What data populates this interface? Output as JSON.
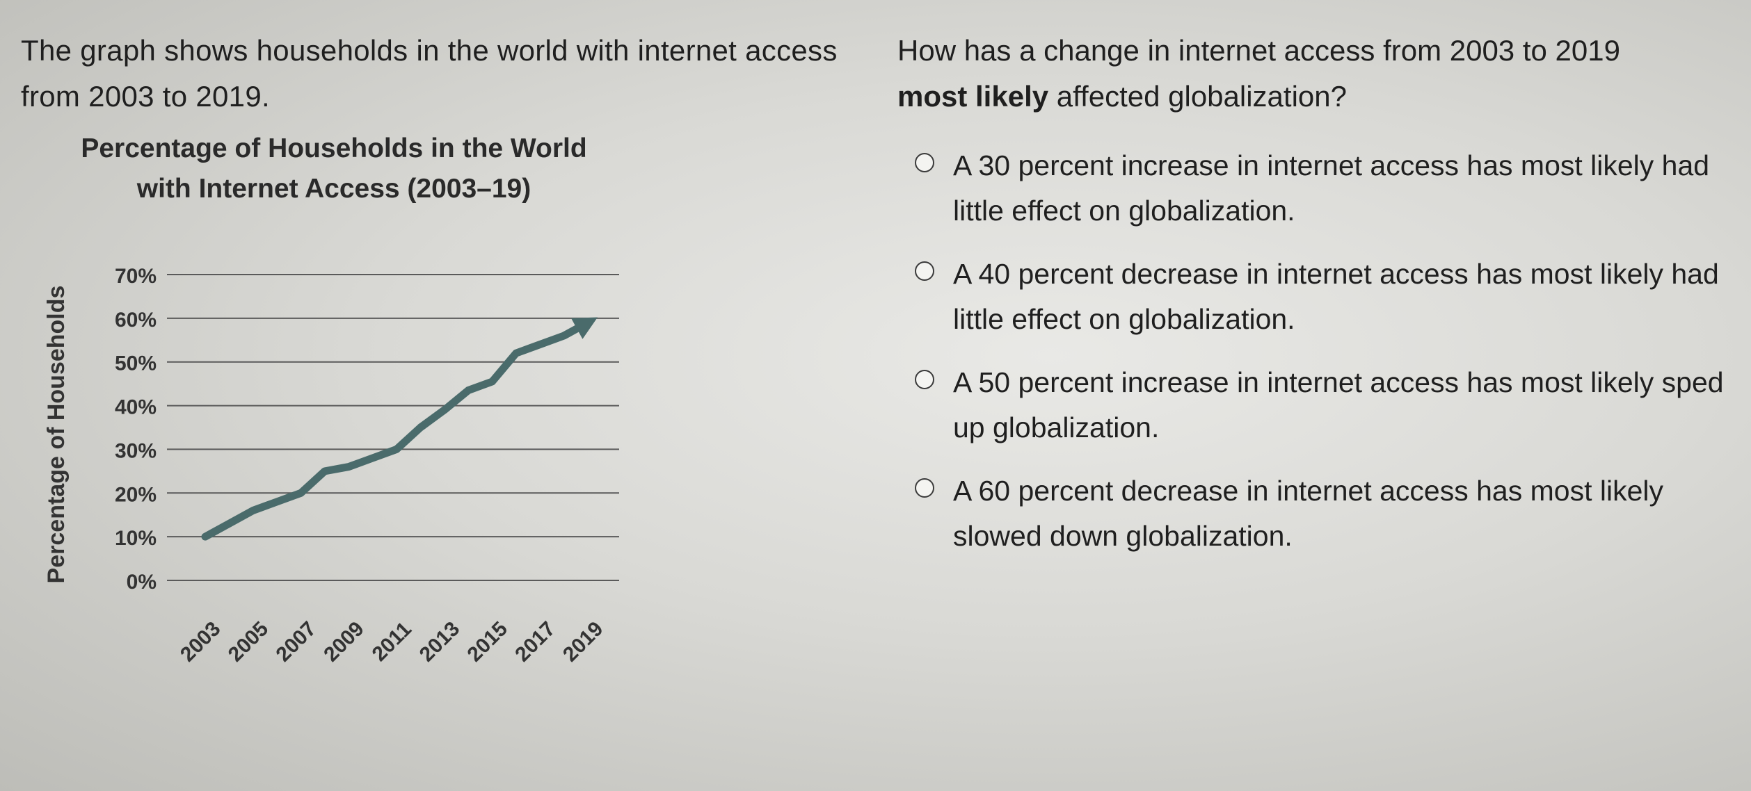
{
  "intro": "The graph shows households in the world with internet access from 2003 to 2019.",
  "question": {
    "part1": "How has a change in internet access from 2003 to 2019",
    "bold": "most likely",
    "part2": "affected globalization?"
  },
  "options": [
    {
      "text": "A 30 percent increase in internet access has most likely had little effect on globalization."
    },
    {
      "text": "A 40 percent decrease in internet access has most likely had little effect on globalization."
    },
    {
      "text": "A 50 percent increase in internet access has most likely sped up globalization."
    },
    {
      "text": "A 60 percent decrease in internet access has most likely slowed down globalization."
    }
  ],
  "chart_data": {
    "type": "line",
    "title_line1": "Percentage of Households in the World",
    "title_line2": "with Internet Access (2003–19)",
    "ylabel": "Percentage of Households",
    "xlabel": "",
    "ylim": [
      0,
      70
    ],
    "y_ticks": [
      "0%",
      "10%",
      "20%",
      "30%",
      "40%",
      "50%",
      "60%",
      "70%"
    ],
    "x_ticks": [
      "2003",
      "2005",
      "2007",
      "2009",
      "2011",
      "2013",
      "2015",
      "2017",
      "2019"
    ],
    "x": [
      2003,
      2004,
      2005,
      2006,
      2007,
      2008,
      2009,
      2010,
      2011,
      2012,
      2013,
      2014,
      2015,
      2016,
      2017,
      2018,
      2019
    ],
    "values": [
      10,
      13,
      16,
      18,
      20,
      25,
      26,
      28,
      30,
      35,
      39,
      43.5,
      45.5,
      52,
      54,
      56,
      59
    ],
    "grid": true,
    "line_color": "#4a6b6b"
  }
}
